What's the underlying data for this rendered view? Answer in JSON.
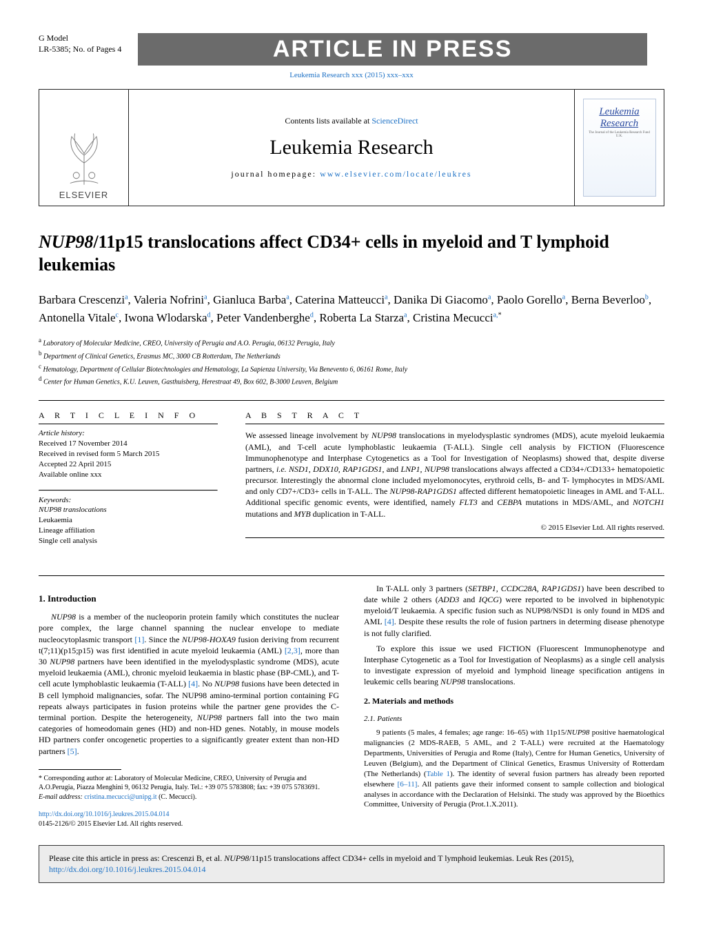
{
  "header": {
    "gmodel_line1": "G Model",
    "gmodel_line2": "LR-5385; No. of Pages 4",
    "in_press": "ARTICLE IN PRESS",
    "journal_ref": "Leukemia Research xxx (2015) xxx–xxx"
  },
  "journal_box": {
    "contents_pre": "Contents lists available at ",
    "contents_link": "ScienceDirect",
    "journal_name": "Leukemia Research",
    "homepage_pre": "journal homepage: ",
    "homepage_link": "www.elsevier.com/locate/leukres",
    "publisher": "ELSEVIER",
    "cover_title_1": "Leukemia",
    "cover_title_2": "Research"
  },
  "title": {
    "italic_prefix": "NUP98",
    "rest": "/11p15 translocations affect CD34+ cells in myeloid and T lymphoid leukemias"
  },
  "authors_html": "Barbara Crescenzi<sup>a</sup>, Valeria Nofrini<sup>a</sup>, Gianluca Barba<sup>a</sup>, Caterina Matteucci<sup>a</sup>, Danika Di Giacomo<sup>a</sup>, Paolo Gorello<sup>a</sup>, Berna Beverloo<sup>b</sup>, Antonella Vitale<sup>c</sup>, Iwona Wlodarska<sup>d</sup>, Peter Vandenberghe<sup>d</sup>, Roberta La Starza<sup>a</sup>, Cristina Mecucci<sup>a,</sup><sup class='star'>*</sup>",
  "affiliations": {
    "a": "Laboratory of Molecular Medicine, CREO, University of Perugia and A.O. Perugia, 06132 Perugia, Italy",
    "b": "Department of Clinical Genetics, Erasmus MC, 3000 CB Rotterdam, The Netherlands",
    "c": "Hematology, Department of Cellular Biotechnologies and Hematology, La Sapienza University, Via Benevento 6, 06161 Rome, Italy",
    "d": "Center for Human Genetics, K.U. Leuven, Gasthuisberg, Herestraat 49, Box 602, B-3000 Leuven, Belgium"
  },
  "article_info": {
    "head": "A R T I C L E   I N F O",
    "history_label": "Article history:",
    "received": "Received 17 November 2014",
    "revised": "Received in revised form 5 March 2015",
    "accepted": "Accepted 22 April 2015",
    "available": "Available online xxx",
    "keywords_label": "Keywords:",
    "keywords": [
      "NUP98 translocations",
      "Leukaemia",
      "Lineage affiliation",
      "Single cell analysis"
    ]
  },
  "abstract": {
    "head": "A B S T R A C T",
    "text": "We assessed lineage involvement by <em>NUP98</em> translocations in myelodysplastic syndromes (MDS), acute myeloid leukaemia (AML), and T-cell acute lymphoblastic leukaemia (T-ALL). Single cell analysis by FICTION (Fluorescence Immunophenotype and Interphase Cytogenetics as a Tool for Investigation of Neoplasms) showed that, despite diverse partners, <em>i.e. NSD1, DDX10, RAP1GDS1</em>, and <em>LNP1, NUP98</em> translocations always affected a CD34+/CD133+ hematopoietic precursor. Interestingly the abnormal clone included myelomonocytes, erythroid cells, B- and T- lymphocytes in MDS/AML and only CD7+/CD3+ cells in T-ALL. The <em>NUP98-RAP1GDS1</em> affected different hematopoietic lineages in AML and T-ALL. Additional specific genomic events, were identified, namely <em>FLT3</em> and <em>CEBPA</em> mutations in MDS/AML, and <em>NOTCH1</em> mutations and <em>MYB</em> duplication in T-ALL.",
    "copyright": "© 2015 Elsevier Ltd. All rights reserved."
  },
  "left_col": {
    "h1": "1.  Introduction",
    "p1": "<em>NUP98</em> is a member of the nucleoporin protein family which constitutes the nuclear pore complex, the large channel spanning the nuclear envelope to mediate nucleocytoplasmic transport <a class='ref' href='#'>[1]</a>. Since the <em>NUP98-HOXA9</em> fusion deriving from recurrent t(7;11)(p15;p15) was first identified in acute myeloid leukaemia (AML) <a class='ref' href='#'>[2,3]</a>, more than 30 <em>NUP98</em> partners have been identified in the myelodysplastic syndrome (MDS), acute myeloid leukaemia (AML), chronic myeloid leukaemia in blastic phase (BP-CML), and T-cell acute lymphoblastic leukaemia (T-ALL) <a class='ref' href='#'>[4]</a>. No <em>NUP98</em> fusions have been detected in B cell lymphoid malignancies, sofar. The NUP98 amino-terminal portion containing FG repeats always participates in fusion proteins while the partner gene provides the C-terminal portion. Despite the heterogeneity, <em>NUP98</em> partners fall into the two main categories of homeodomain genes (HD) and non-HD genes. Notably, in mouse models HD partners confer oncogenetic properties to a significantly greater extent than non-HD partners <a class='ref' href='#'>[5]</a>."
  },
  "right_col": {
    "p1": "In T-ALL only 3 partners (<em>SETBP1, CCDC28A, RAP1GDS1</em>) have been described to date while 2 others (<em>ADD3</em> and <em>IQCG</em>) were reported to be involved in biphenotypic myeloid/T leukaemia. A specific fusion such as NUP98/NSD1 is only found in MDS and AML <a class='ref' href='#'>[4]</a>. Despite these results the role of fusion partners in determing disease phenotype is not fully clarified.",
    "p2": "To explore this issue we used FICTION (Fluorescent Immunophenotype and Interphase Cytogenetic as a Tool for Investigation of Neoplasms) as a single cell analysis to investigate expression of myeloid and lymphoid lineage specification antigens in leukemic cells bearing <em>NUP98</em> translocations.",
    "h2": "2.  Materials and methods",
    "h3": "2.1.  Patients",
    "p3": "9 patients (5 males, 4 females; age range: 16–65) with 11p15/<em>NUP98</em> positive haematological malignancies (2 MDS-RAEB, 5 AML, and 2 T-ALL) were recruited at the Haematology Departments, Universities of Perugia and Rome (Italy), Centre for Human Genetics, University of Leuven (Belgium), and the Department of Clinical Genetics, Erasmus University of Rotterdam (The Netherlands) (<a class='ref' href='#'>Table 1</a>). The identity of several fusion partners has already been reported elsewhere <a class='ref' href='#'>[6–11]</a>. All patients gave their informed consent to sample collection and biological analyses in accordance with the Declaration of Helsinki. The study was approved by the Bioethics Committee, University of Perugia (Prot.1.X.2011)."
  },
  "footnotes": {
    "corr": "* Corresponding author at: Laboratory of Molecular Medicine, CREO, University of Perugia and A.O.Perugia, Piazza Menghini 9, 06132 Perugia, Italy. Tel.: +39 075 5783808; fax: +39 075 5783691.",
    "email_label": "E-mail address: ",
    "email": "cristina.mecucci@unipg.it",
    "email_suffix": " (C. Mecucci)."
  },
  "doi": {
    "link": "http://dx.doi.org/10.1016/j.leukres.2015.04.014",
    "issn": "0145-2126/© 2015 Elsevier Ltd. All rights reserved."
  },
  "cite_box": {
    "text_pre": "Please cite this article in press as: Crescenzi B, et al. ",
    "text_italic": "NUP98",
    "text_post": "/11p15 translocations affect CD34+ cells in myeloid and T lymphoid leukemias. Leuk Res (2015), ",
    "link": "http://dx.doi.org/10.1016/j.leukres.2015.04.014"
  },
  "colors": {
    "link": "#1a6fc4",
    "bar_bg": "#6b6b6b",
    "cite_bg": "#ececec"
  }
}
